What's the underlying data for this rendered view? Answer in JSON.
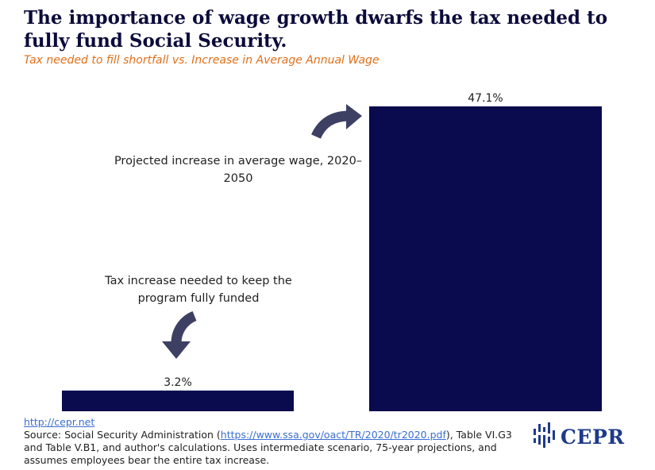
{
  "title": "The importance of wage growth dwarfs the tax needed to fully fund Social Security.",
  "subtitle": "Tax needed to fill shortfall vs. Increase in Average Annual Wage",
  "annotations": {
    "wage": "Projected increase in average wage, 2020–2050",
    "tax": "Tax increase needed to keep the program fully funded"
  },
  "footer": {
    "link": "http://cepr.net",
    "source_prefix": "Source: Social Security Administration (",
    "source_url": "https://www.ssa.gov/oact/TR/2020/tr2020.pdf",
    "source_suffix": "), Table VI.G3 and Table V.B1, and author's calculations. Uses intermediate scenario, 75-year projections, and assumes employees bear the entire tax increase."
  },
  "logo": {
    "text": "CEPR",
    "icon": "cepr-bars-icon"
  },
  "colors": {
    "bar": "#0a0a4f",
    "arrow": "#3d3f63",
    "subtitle": "#e0701a",
    "title": "#0b0b3b"
  },
  "chart_data": {
    "type": "bar",
    "categories": [
      "Tax increase needed to keep the program fully funded",
      "Projected increase in average wage, 2020–2050"
    ],
    "values": [
      3.2,
      47.1
    ],
    "value_labels": [
      "3.2%",
      "47.1%"
    ],
    "title": "The importance of wage growth dwarfs the tax needed to fully fund Social Security.",
    "xlabel": "",
    "ylabel": "",
    "ylim": [
      0,
      47.1
    ],
    "grid": false,
    "legend": "none"
  }
}
